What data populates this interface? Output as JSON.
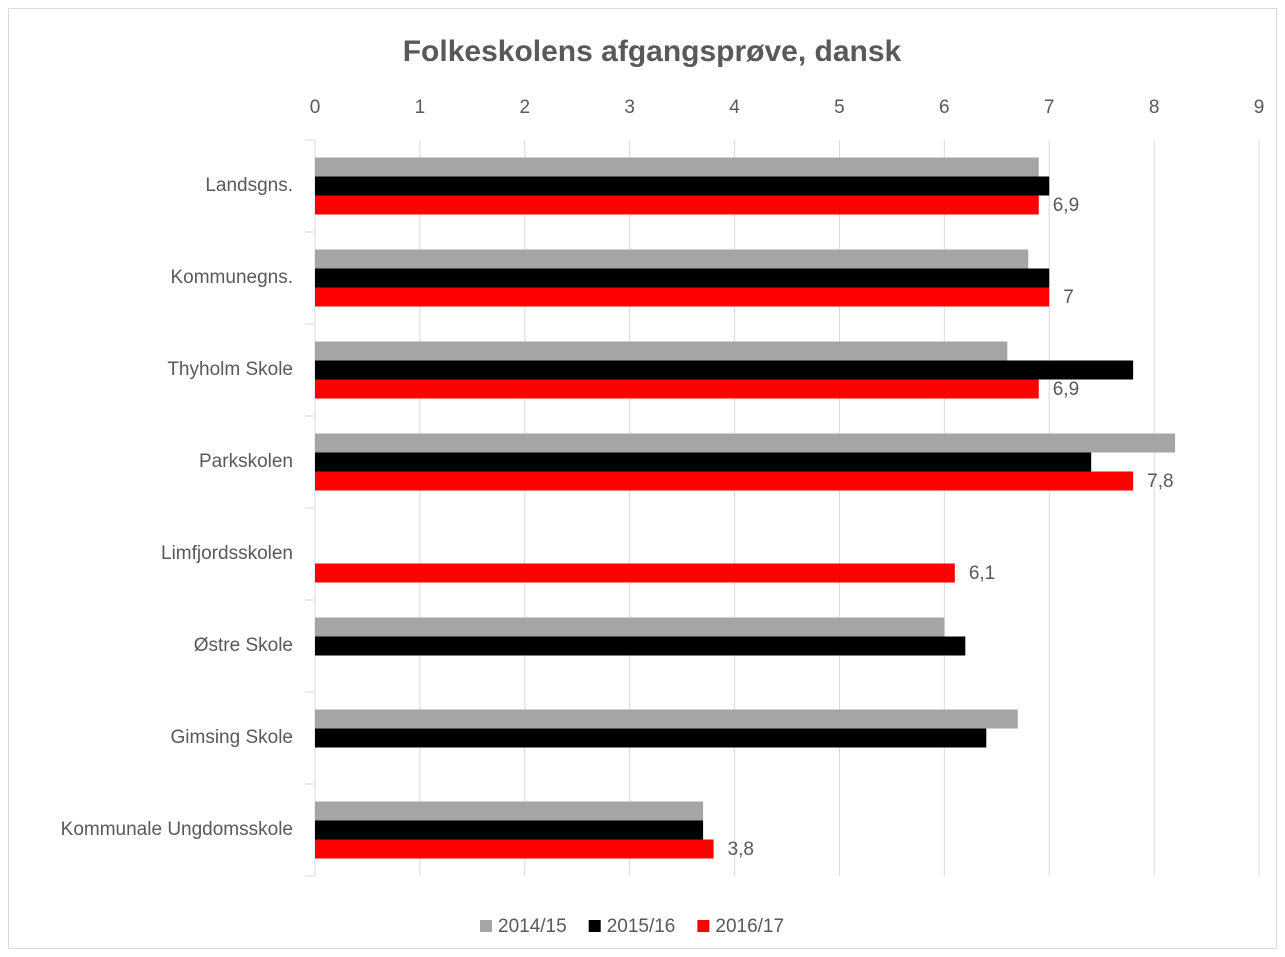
{
  "chart_data": {
    "type": "hbar",
    "title": "Folkeskolens afgangsprøve, dansk",
    "categories": [
      "Landsgns.",
      "Kommunegns.",
      "Thyholm Skole",
      "Parkskolen",
      "Limfjordsskolen",
      "Østre Skole",
      "Gimsing Skole",
      "Kommunale Ungdomsskole"
    ],
    "series": [
      {
        "name": "2014/15",
        "color": "#a5a5a5",
        "values": [
          6.9,
          6.8,
          6.6,
          8.2,
          null,
          6.0,
          6.7,
          3.7
        ]
      },
      {
        "name": "2015/16",
        "color": "#000000",
        "values": [
          7.0,
          7.0,
          7.8,
          7.4,
          null,
          6.2,
          6.4,
          3.7
        ]
      },
      {
        "name": "2016/17",
        "color": "#ff0000",
        "values": [
          6.9,
          7,
          6.9,
          7.8,
          6.1,
          null,
          null,
          3.8
        ],
        "value_labels": [
          "6,9",
          "7",
          "6,9",
          "7,8",
          "6,1",
          null,
          null,
          "3,8"
        ]
      }
    ],
    "xlim": [
      0,
      9
    ],
    "xticks": [
      0,
      1,
      2,
      3,
      4,
      5,
      6,
      7,
      8,
      9
    ],
    "grid": true,
    "legend": "bottom"
  }
}
